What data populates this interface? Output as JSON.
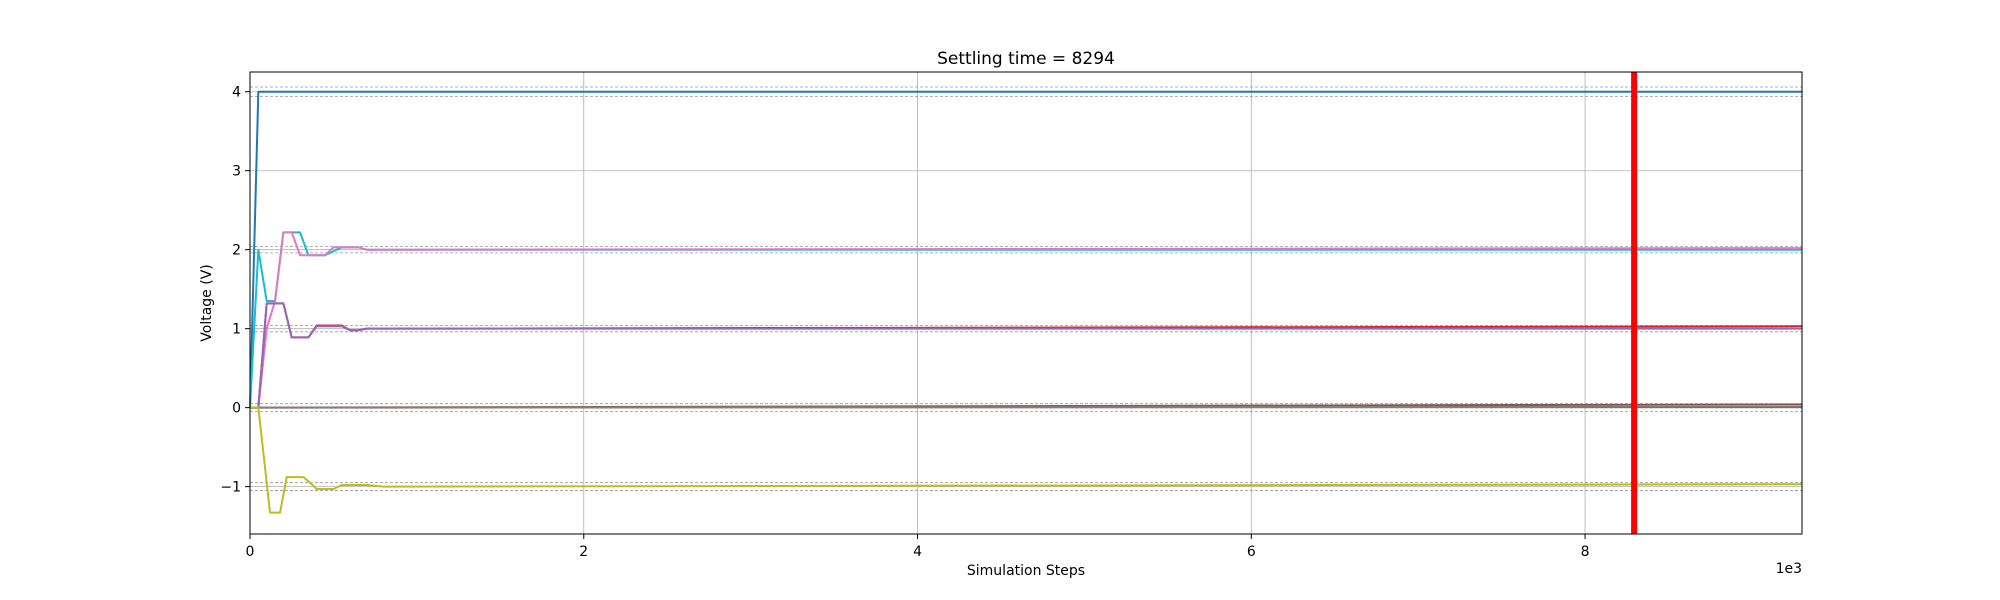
{
  "chart_data": {
    "type": "line",
    "title": "Settling time = 8294",
    "xlabel": "Simulation Steps",
    "ylabel": "Voltage (V)",
    "x_offset_text": "1e3",
    "xlim": [
      0,
      9.3
    ],
    "ylim": [
      -1.6,
      4.25
    ],
    "x_ticks": [
      0,
      2,
      4,
      6,
      8
    ],
    "x_tick_labels": [
      "0",
      "2",
      "4",
      "6",
      "8"
    ],
    "y_ticks": [
      -1,
      0,
      1,
      2,
      3,
      4
    ],
    "y_tick_labels": [
      "−1",
      "0",
      "1",
      "2",
      "3",
      "4"
    ],
    "grid": true,
    "settling_marker": {
      "x": 8.294,
      "color": "#ff0000"
    },
    "tolerance_bands": [
      {
        "center": 4,
        "half_width": 0.06
      },
      {
        "center": 2,
        "half_width": 0.04
      },
      {
        "center": 1,
        "half_width": 0.04
      },
      {
        "center": 0,
        "half_width": 0.05
      },
      {
        "center": -1,
        "half_width": 0.05
      }
    ],
    "series": [
      {
        "color": "#1f77b4",
        "x": [
          0,
          0.05,
          9.3
        ],
        "y": [
          0,
          4,
          4
        ]
      },
      {
        "color": "#17becf",
        "x": [
          0,
          0.05,
          0.1,
          0.15,
          0.2,
          0.25,
          0.3,
          0.35,
          0.4,
          0.45,
          0.5,
          0.55,
          0.6,
          0.65,
          0.7,
          0.8,
          9.3
        ],
        "y": [
          0,
          2.0,
          1.35,
          1.35,
          2.22,
          2.22,
          2.22,
          1.93,
          1.93,
          1.93,
          1.98,
          2.03,
          2.03,
          2.03,
          2.0,
          2.0,
          2.0
        ]
      },
      {
        "color": "#e377c2",
        "x": [
          0,
          0.05,
          0.1,
          0.15,
          0.2,
          0.25,
          0.3,
          0.35,
          0.4,
          0.45,
          0.5,
          0.55,
          0.6,
          0.65,
          0.7,
          0.8,
          9.3
        ],
        "y": [
          0,
          0,
          1.0,
          1.35,
          2.22,
          2.22,
          1.93,
          1.93,
          1.93,
          1.93,
          2.03,
          2.03,
          2.03,
          2.03,
          2.0,
          2.0,
          2.02
        ]
      },
      {
        "color": "#d62728",
        "x": [
          0,
          0.05,
          0.1,
          0.15,
          0.2,
          0.25,
          0.3,
          0.35,
          0.4,
          0.45,
          0.5,
          0.55,
          0.6,
          0.65,
          0.7,
          0.8,
          9.3
        ],
        "y": [
          0,
          0,
          1.32,
          1.32,
          1.32,
          0.89,
          0.89,
          0.89,
          1.04,
          1.04,
          1.04,
          1.04,
          0.98,
          0.98,
          1.0,
          1.0,
          1.03
        ]
      },
      {
        "color": "#9467bd",
        "x": [
          0,
          0.05,
          0.1,
          0.15,
          0.2,
          0.25,
          0.3,
          0.35,
          0.4,
          0.45,
          0.5,
          0.55,
          0.6,
          0.65,
          0.7,
          0.8,
          9.3
        ],
        "y": [
          0,
          0,
          1.32,
          1.32,
          1.32,
          0.89,
          0.89,
          0.89,
          1.03,
          1.03,
          1.03,
          1.03,
          0.98,
          0.98,
          1.0,
          1.0,
          1.0
        ]
      },
      {
        "color": "#8c564b",
        "x": [
          0,
          9.3
        ],
        "y": [
          0.0,
          0.04
        ]
      },
      {
        "color": "#7f7f7f",
        "x": [
          0,
          9.3
        ],
        "y": [
          0.0,
          0.01
        ]
      },
      {
        "color": "#bcbd22",
        "x": [
          0,
          0.05,
          0.12,
          0.18,
          0.22,
          0.27,
          0.32,
          0.36,
          0.4,
          0.45,
          0.5,
          0.55,
          0.6,
          0.7,
          0.8,
          9.3
        ],
        "y": [
          0,
          0,
          -1.33,
          -1.33,
          -0.88,
          -0.88,
          -0.88,
          -0.95,
          -1.03,
          -1.03,
          -1.03,
          -0.98,
          -0.98,
          -0.98,
          -1.0,
          -0.97
        ]
      }
    ]
  }
}
